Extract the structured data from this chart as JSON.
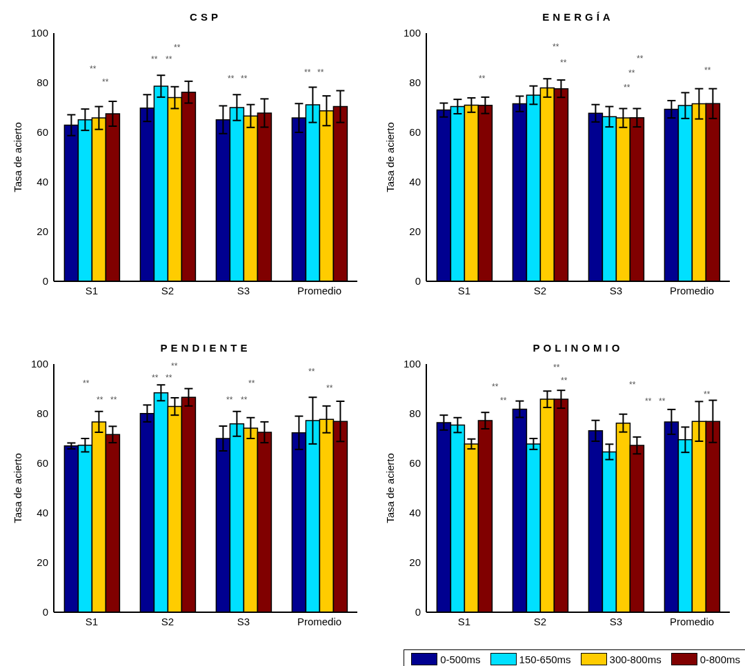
{
  "chart_data": [
    {
      "type": "bar",
      "title": "CSP",
      "ylabel": "Tasa de acierto",
      "categories": [
        "S1",
        "S2",
        "S3",
        "Promedio"
      ],
      "ylim": [
        0,
        100
      ],
      "yticks": [
        0,
        20,
        40,
        60,
        80,
        100
      ],
      "legend": false,
      "series": [
        {
          "color": "#000090",
          "values": [
            62.9,
            69.8,
            65.1,
            65.8
          ],
          "errors": [
            4.2,
            5.4,
            5.6,
            5.8
          ]
        },
        {
          "color": "#00e0ff",
          "values": [
            65.1,
            78.6,
            70,
            71.1
          ],
          "errors": [
            4.3,
            4.4,
            5.2,
            7.1
          ]
        },
        {
          "color": "#ffcc00",
          "values": [
            65.8,
            74,
            66.6,
            68.7
          ],
          "errors": [
            4.6,
            4.4,
            4.6,
            6
          ]
        },
        {
          "color": "#800000",
          "values": [
            67.5,
            76.2,
            67.8,
            70.4
          ],
          "errors": [
            5,
            4.4,
            5.7,
            6.4
          ]
        }
      ],
      "annotations": [
        "**",
        "**",
        "**",
        "**",
        "**",
        "**",
        "**",
        "**",
        "**"
      ]
    },
    {
      "type": "bar",
      "title": "ENERGÍA",
      "ylabel": "Tasa de acierto",
      "categories": [
        "S1",
        "S2",
        "S3",
        "Promedio"
      ],
      "ylim": [
        0,
        100
      ],
      "yticks": [
        0,
        20,
        40,
        60,
        80,
        100
      ],
      "legend": false,
      "series": [
        {
          "color": "#000090",
          "values": [
            69,
            71.5,
            67.7,
            69.3
          ],
          "errors": [
            2.8,
            3.1,
            3.5,
            3.5
          ]
        },
        {
          "color": "#00e0ff",
          "values": [
            70.4,
            75,
            66.3,
            70.8
          ],
          "errors": [
            2.9,
            3.7,
            4.1,
            5.2
          ]
        },
        {
          "color": "#ffcc00",
          "values": [
            71,
            77.9,
            65.8,
            71.5
          ],
          "errors": [
            2.9,
            3.7,
            3.8,
            6.1
          ]
        },
        {
          "color": "#800000",
          "values": [
            70.9,
            77.6,
            65.9,
            71.6
          ],
          "errors": [
            3.3,
            3.5,
            3.7,
            6
          ]
        }
      ],
      "annotations": [
        "**",
        "**",
        "**",
        "**",
        "**",
        "**",
        "**"
      ]
    },
    {
      "type": "bar",
      "title": "PENDIENTE",
      "ylabel": "Tasa de acierto",
      "categories": [
        "S1",
        "S2",
        "S3",
        "Promedio"
      ],
      "ylim": [
        0,
        100
      ],
      "yticks": [
        0,
        20,
        40,
        60,
        80,
        100
      ],
      "legend": false,
      "series": [
        {
          "color": "#000090",
          "values": [
            67,
            80.1,
            70,
            72.3
          ],
          "errors": [
            1.2,
            3.4,
            5,
            6.7
          ]
        },
        {
          "color": "#00e0ff",
          "values": [
            67.3,
            88.4,
            75.9,
            77.2
          ],
          "errors": [
            2.7,
            3.2,
            5,
            9.4
          ]
        },
        {
          "color": "#ffcc00",
          "values": [
            76.7,
            82.9,
            74.2,
            77.7
          ],
          "errors": [
            4.2,
            3.5,
            4.2,
            5.4
          ]
        },
        {
          "color": "#800000",
          "values": [
            71.6,
            86.6,
            72.5,
            76.9
          ],
          "errors": [
            3.3,
            3.5,
            4.2,
            8.1
          ]
        }
      ],
      "annotations": [
        "**",
        "**",
        "**",
        "**",
        "**",
        "**",
        "**",
        "**",
        "**",
        "**",
        "**"
      ]
    },
    {
      "type": "bar",
      "title": "POLINOMIO",
      "ylabel": "Tasa de acierto",
      "categories": [
        "S1",
        "S2",
        "S3",
        "Promedio"
      ],
      "ylim": [
        0,
        100
      ],
      "yticks": [
        0,
        20,
        40,
        60,
        80,
        100
      ],
      "legend": "bottom right",
      "series": [
        {
          "name": "0-500ms",
          "color": "#000090",
          "values": [
            76.4,
            81.8,
            73.1,
            76.7
          ],
          "errors": [
            3,
            3.3,
            4.2,
            5
          ]
        },
        {
          "name": "150-650ms",
          "color": "#00e0ff",
          "values": [
            75.4,
            67.8,
            64.6,
            69.5
          ],
          "errors": [
            3,
            2.2,
            3.1,
            5.1
          ]
        },
        {
          "name": "300-800ms",
          "color": "#ffcc00",
          "values": [
            67.8,
            85.8,
            76.2,
            76.9
          ],
          "errors": [
            2,
            3.3,
            3.6,
            8
          ]
        },
        {
          "name": "0-800ms",
          "color": "#800000",
          "values": [
            77.2,
            85.8,
            67.2,
            76.9
          ],
          "errors": [
            3.3,
            3.6,
            3.4,
            8.5
          ]
        }
      ],
      "annotations": [
        "**",
        "**",
        "**",
        "**",
        "**",
        "**",
        "**",
        "**"
      ]
    }
  ]
}
